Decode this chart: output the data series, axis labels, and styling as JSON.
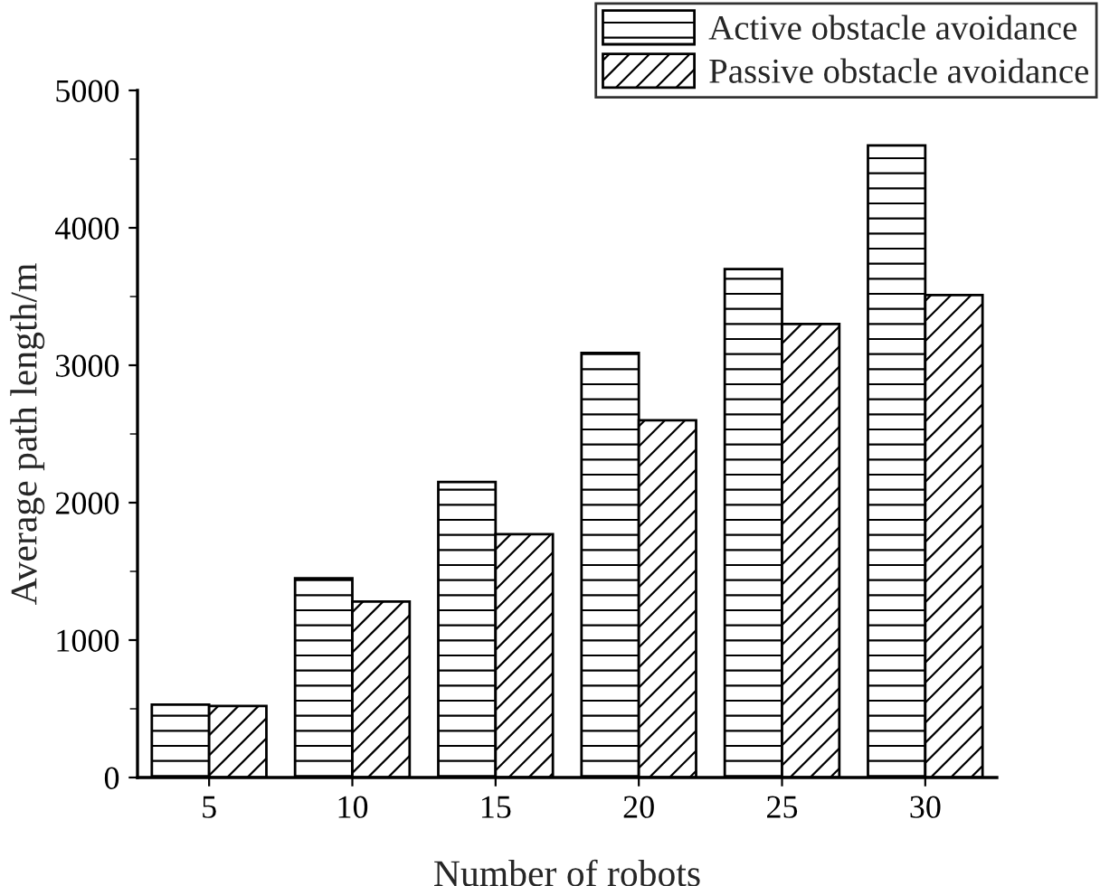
{
  "chart_data": {
    "type": "bar",
    "xlabel": "Number of robots",
    "ylabel": "Average path length/m",
    "categories": [
      "5",
      "10",
      "15",
      "20",
      "25",
      "30"
    ],
    "series": [
      {
        "name": "Active obstacle avoidance",
        "color": "#000000",
        "values": [
          530,
          1450,
          2150,
          3090,
          3700,
          4600
        ]
      },
      {
        "name": "Passive obstacle avoidance",
        "color": "#000000",
        "values": [
          520,
          1280,
          1770,
          2600,
          3300,
          3510
        ]
      }
    ],
    "ylim": [
      0,
      5000
    ],
    "yticks": [
      0,
      1000,
      2000,
      3000,
      4000,
      5000
    ],
    "grid": false,
    "legend": "top right"
  }
}
